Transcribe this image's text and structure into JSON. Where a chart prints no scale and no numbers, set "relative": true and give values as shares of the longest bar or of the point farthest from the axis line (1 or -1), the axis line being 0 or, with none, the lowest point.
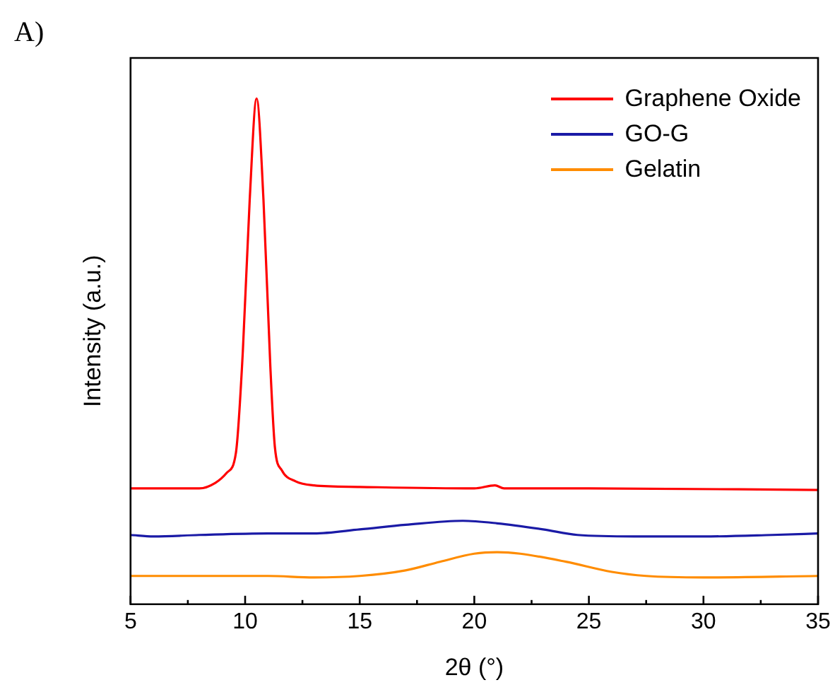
{
  "chart_data": {
    "type": "line",
    "xlabel": "2θ (°)",
    "ylabel": "Intensity (a.u.)",
    "annotations": [
      "A)"
    ],
    "relative": true,
    "tick_labels": "x",
    "grid": false,
    "legend": "top right",
    "marker": "none",
    "line_style": "solid",
    "xlim": [
      5,
      35
    ],
    "xticks": [
      5,
      10,
      15,
      20,
      25,
      30,
      35
    ],
    "series": [
      {
        "name": "Graphene Oxide",
        "color": "#ff0000",
        "x": [
          5,
          8,
          8.7,
          9.2,
          9.6,
          9.9,
          10.2,
          10.5,
          10.8,
          11.1,
          11.3,
          11.6,
          12.2,
          13,
          15,
          20,
          20.9,
          21.3,
          25,
          35
        ],
        "values": [
          0.229,
          0.229,
          0.24,
          0.26,
          0.3,
          0.5,
          0.8,
          1,
          0.8,
          0.47,
          0.31,
          0.265,
          0.243,
          0.235,
          0.232,
          0.229,
          0.235,
          0.229,
          0.229,
          0.226
        ]
      },
      {
        "name": "GO-G",
        "color": "#1a1aa6",
        "x": [
          5,
          6,
          8,
          11,
          13,
          15,
          17,
          19.5,
          21,
          23,
          24.5,
          27,
          30,
          33,
          35
        ],
        "values": [
          0.137,
          0.134,
          0.137,
          0.14,
          0.14,
          0.148,
          0.157,
          0.165,
          0.16,
          0.148,
          0.137,
          0.134,
          0.134,
          0.137,
          0.14
        ]
      },
      {
        "name": "Gelatin",
        "color": "#ff8c00",
        "x": [
          5,
          8,
          11,
          13,
          15,
          17,
          18.5,
          20,
          21,
          22,
          24,
          26,
          27.5,
          30,
          35
        ],
        "values": [
          0.056,
          0.056,
          0.056,
          0.053,
          0.056,
          0.067,
          0.084,
          0.1,
          0.103,
          0.1,
          0.084,
          0.064,
          0.056,
          0.053,
          0.056
        ]
      }
    ]
  }
}
